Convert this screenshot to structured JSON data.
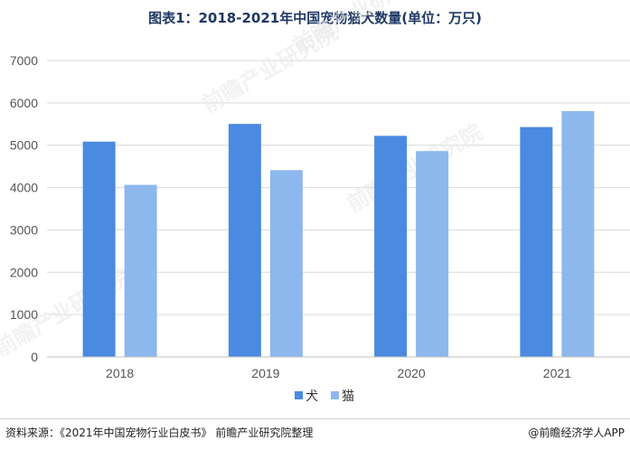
{
  "title": "图表1：2018-2021年中国宠物猫犬数量(单位：万只)",
  "source": "资料来源：《2021年中国宠物行业白皮书》 前瞻产业研究院整理",
  "credit": "@前瞻经济学人APP",
  "watermark": "前瞻产业研究院",
  "colors": {
    "dog": "#4a8ae0",
    "cat": "#8db8ee",
    "grid": "#d9d9d9",
    "axis": "#bfbfbf"
  },
  "chart_data": {
    "type": "bar",
    "categories": [
      "2018",
      "2019",
      "2020",
      "2021"
    ],
    "series": [
      {
        "name": "犬",
        "values": [
          5085,
          5503,
          5222,
          5429
        ]
      },
      {
        "name": "猫",
        "values": [
          4064,
          4412,
          4862,
          5806
        ]
      }
    ],
    "ylim": [
      0,
      7000
    ],
    "yticks": [
      0,
      1000,
      2000,
      3000,
      4000,
      5000,
      6000,
      7000
    ],
    "grid": true,
    "legend": "bottom"
  }
}
